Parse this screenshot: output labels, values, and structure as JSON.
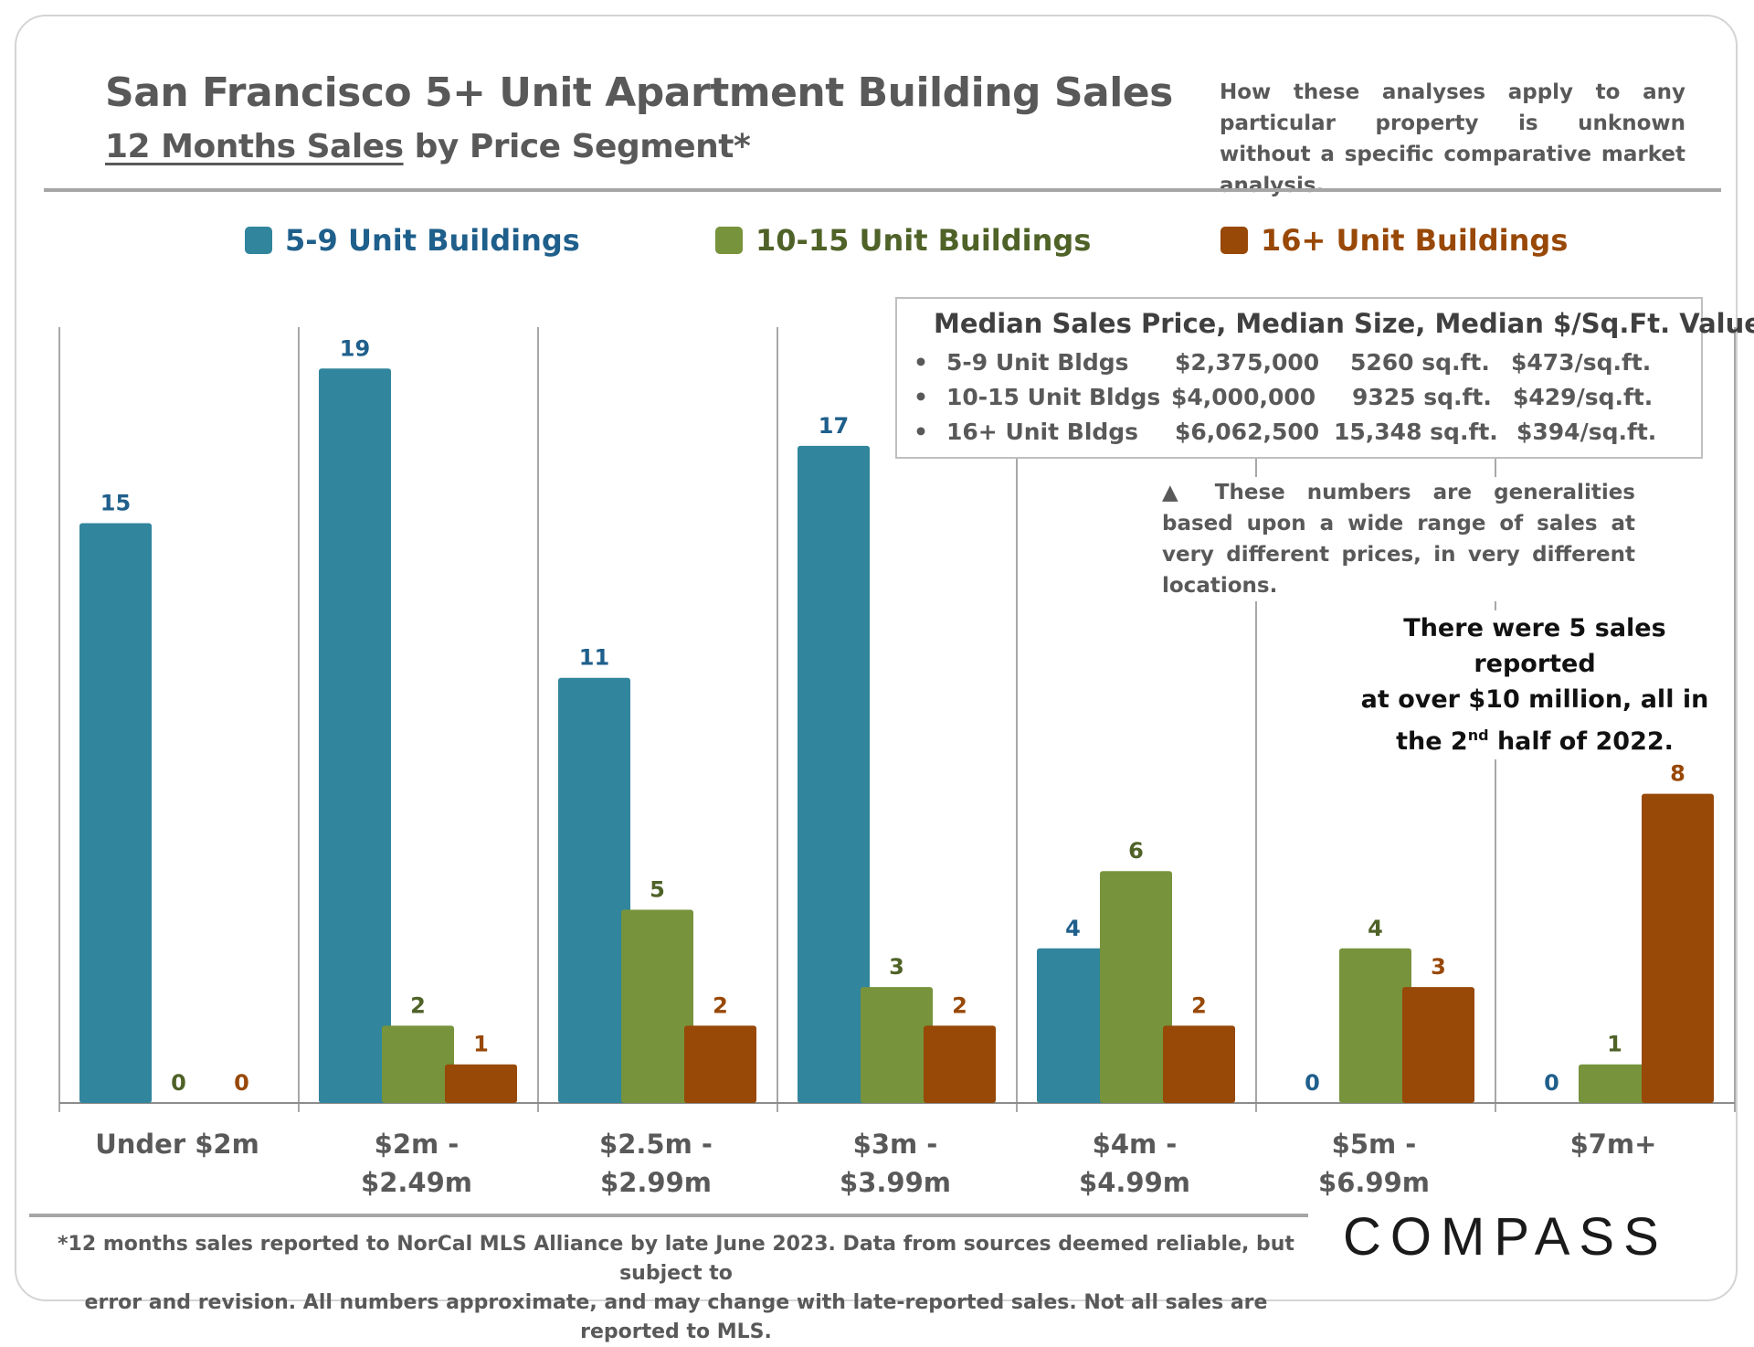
{
  "header": {
    "title": "San Francisco 5+ Unit Apartment Building Sales",
    "subtitle_underlined": "12 Months Sales",
    "subtitle_rest": " by Price Segment*",
    "disclaimer": "How these analyses apply to any particular property is unknown without a specific comparative market analysis."
  },
  "stats_box": {
    "heading": "Median Sales Price, Median Size, Median $/Sq.Ft. Value",
    "rows": [
      {
        "bullet": "•",
        "type": "5-9 Unit Bldgs",
        "price": "$2,375,000",
        "size": "5260 sq.ft.",
        "ppsf": "$473/sq.ft."
      },
      {
        "bullet": "•",
        "type": "10-15 Unit Bldgs",
        "price": "$4,000,000",
        "size": "9325 sq.ft.",
        "ppsf": "$429/sq.ft."
      },
      {
        "bullet": "•",
        "type": "16+ Unit Bldgs",
        "price": "$6,062,500",
        "size": "15,348 sq.ft.",
        "ppsf": "$394/sq.ft."
      }
    ]
  },
  "note": "▲ These numbers are generalities based upon a wide range of sales at very different prices, in very different locations.",
  "callout": {
    "line1": "There were 5 sales reported",
    "line2": "at over $10 million, all in",
    "line3_pre": "the 2",
    "line3_sup": "nd",
    "line3_post": " half of 2022."
  },
  "footnote": {
    "line1": "*12 months sales reported to NorCal MLS Alliance by late June 2023. Data from sources deemed reliable, but subject to",
    "line2": "error and revision. All numbers approximate, and may change with late-reported sales. Not all sales are reported to MLS."
  },
  "logo": "COMPASS",
  "colors": {
    "series_1": "#31859c",
    "series_2": "#77933c",
    "series_3": "#984807",
    "label_1": "#1f5f8b",
    "label_2": "#4f6228",
    "label_3": "#984807"
  },
  "chart_data": {
    "type": "bar",
    "title": "San Francisco 5+ Unit Apartment Building Sales",
    "subtitle": "12 Months Sales by Price Segment*",
    "xlabel": "",
    "ylabel": "",
    "ylim": [
      0,
      20
    ],
    "grid": false,
    "legend_position": "top",
    "categories": [
      [
        "Under $2m"
      ],
      [
        "$2m -",
        "$2.49m"
      ],
      [
        "$2.5m -",
        "$2.99m"
      ],
      [
        "$3m -",
        "$3.99m"
      ],
      [
        "$4m -",
        "$4.99m"
      ],
      [
        "$5m -",
        "$6.99m"
      ],
      [
        "$7m+"
      ]
    ],
    "series": [
      {
        "name": "5-9 Unit Buildings",
        "values": [
          15,
          19,
          11,
          17,
          4,
          0,
          0
        ]
      },
      {
        "name": "10-15 Unit Buildings",
        "values": [
          0,
          2,
          5,
          3,
          6,
          4,
          1
        ]
      },
      {
        "name": "16+ Unit Buildings",
        "values": [
          0,
          1,
          2,
          2,
          2,
          3,
          8
        ]
      }
    ]
  }
}
